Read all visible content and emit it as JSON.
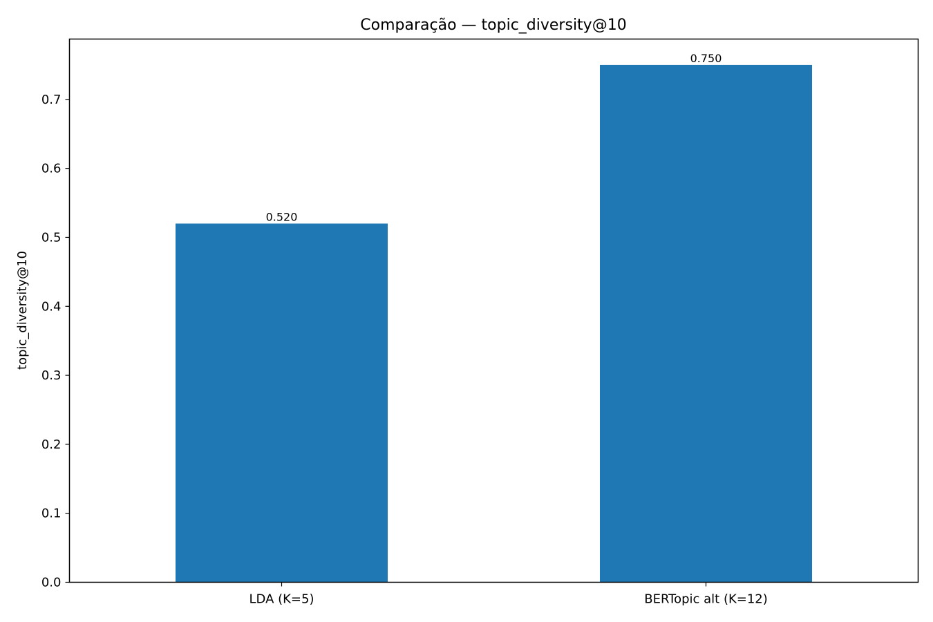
{
  "chart_data": {
    "type": "bar",
    "title": "Comparação — topic_diversity@10",
    "xlabel": "",
    "ylabel": "topic_diversity@10",
    "categories": [
      "LDA (K=5)",
      "BERTopic alt (K=12)"
    ],
    "values": [
      0.52,
      0.75
    ],
    "data_labels": [
      "0.520",
      "0.750"
    ],
    "ylim": [
      0,
      0.7875
    ],
    "yticks": [
      0.0,
      0.1,
      0.2,
      0.3,
      0.4,
      0.5,
      0.6,
      0.7
    ],
    "ytick_labels": [
      "0.0",
      "0.1",
      "0.2",
      "0.3",
      "0.4",
      "0.5",
      "0.6",
      "0.7"
    ],
    "bar_color": "#1f77b4",
    "grid": false,
    "legend": "none"
  }
}
